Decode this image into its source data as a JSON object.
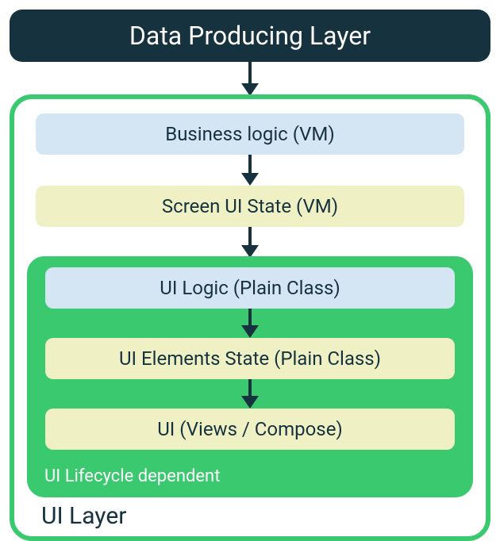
{
  "diagram": {
    "type": "flowchart",
    "background": "#ffffff",
    "arrow_color": "#16323e",
    "arrow_stem_width": 4,
    "arrow_head_size": 16,
    "top_box": {
      "label": "Data Producing Layer",
      "background": "#16323e",
      "text_color": "#ffffff",
      "font_size": 32,
      "border_radius": 16
    },
    "arrow_lengths": {
      "a0": 28,
      "a1": 24,
      "a2": 24,
      "a3": 22,
      "a4": 22
    },
    "outer_container": {
      "border_color": "#3ac96e",
      "border_width": 6,
      "border_radius": 28,
      "caption": "UI Layer",
      "caption_color": "#16323e",
      "caption_fontsize": 30
    },
    "boxes": {
      "business_logic": {
        "label": "Business logic (VM)",
        "background": "#d4e5f4",
        "text_color": "#16323e"
      },
      "screen_ui_state": {
        "label": "Screen UI State (VM)",
        "background": "#eff1c4",
        "text_color": "#16323e"
      },
      "ui_logic": {
        "label": "UI Logic (Plain Class)",
        "background": "#d4e5f4",
        "text_color": "#16323e"
      },
      "ui_elements_state": {
        "label": "UI Elements State (Plain Class)",
        "background": "#eff1c4",
        "text_color": "#16323e"
      },
      "ui_views": {
        "label": "UI (Views / Compose)",
        "background": "#eff1c4",
        "text_color": "#16323e"
      }
    },
    "inner_container": {
      "background": "#3ac96e",
      "border_radius": 22,
      "caption": "UI Lifecycle dependent",
      "caption_color": "#ffffff",
      "caption_fontsize": 22
    },
    "box_fontsize": 24,
    "box_radius": 10
  }
}
